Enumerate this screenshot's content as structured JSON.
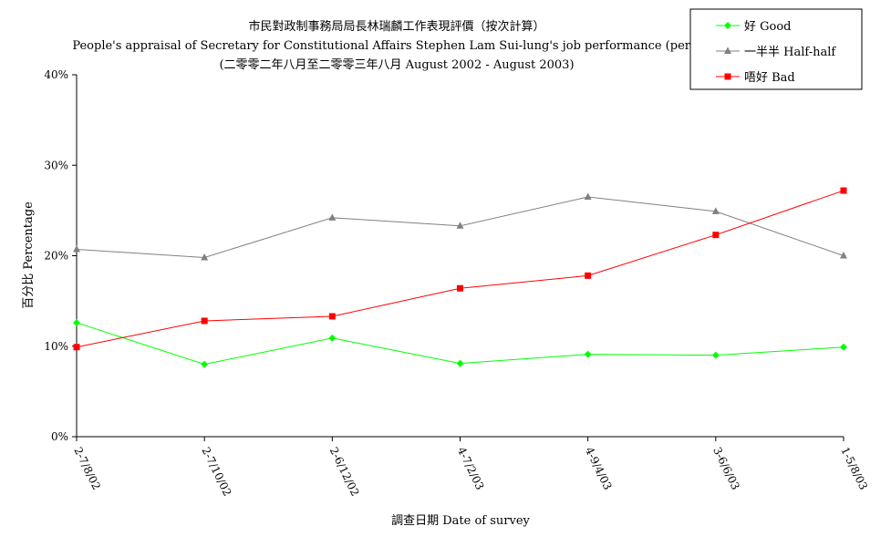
{
  "chart_data": {
    "type": "line",
    "title_lines": [
      "市民對政制事務局局長林瑞麟工作表現評價（按次計算）",
      "People's appraisal of Secretary for Constitutional Affairs Stephen Lam Sui-lung's job performance (per poll)",
      "(二零零二年八月至二零零三年八月 August 2002 - August 2003)"
    ],
    "xlabel": "調查日期 Date of survey",
    "ylabel": "百分比 Percentage",
    "categories": [
      "2-7/8/02",
      "2-7/10/02",
      "2-6/12/02",
      "4-7/2/03",
      "4-9/4/03",
      "3-6/6/03",
      "1-5/8/03"
    ],
    "ylim": [
      0,
      40
    ],
    "yticks": [
      0,
      10,
      20,
      30,
      40
    ],
    "ytick_labels": [
      "0%",
      "10%",
      "20%",
      "30%",
      "40%"
    ],
    "grid": false,
    "legend_position": "top-right",
    "series": [
      {
        "name": "好 Good",
        "color": "#00ff00",
        "marker": "diamond",
        "values": [
          12.6,
          8.0,
          10.9,
          8.1,
          9.1,
          9.0,
          9.9
        ]
      },
      {
        "name": "一半半 Half-half",
        "color": "#808080",
        "marker": "triangle",
        "values": [
          20.7,
          19.8,
          24.2,
          23.3,
          26.5,
          24.9,
          20.0
        ]
      },
      {
        "name": "唔好 Bad",
        "color": "#ff0000",
        "marker": "square",
        "values": [
          9.9,
          12.8,
          13.3,
          16.4,
          17.8,
          22.3,
          27.2
        ]
      }
    ]
  }
}
